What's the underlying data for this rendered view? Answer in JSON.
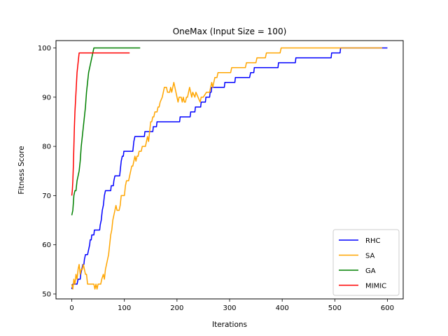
{
  "chart_data": {
    "type": "line",
    "title": "OneMax (Input Size = 100)",
    "xlabel": "Iterations",
    "ylabel": "Fitness Score",
    "xlim": [
      -30,
      630
    ],
    "ylim": [
      49,
      101.5
    ],
    "xticks": [
      0,
      100,
      200,
      300,
      400,
      500,
      600
    ],
    "yticks": [
      50,
      60,
      70,
      80,
      90,
      100
    ],
    "grid": false,
    "legend_position": "lower-right",
    "series": [
      {
        "name": "RHC",
        "color": "#0000ff",
        "points": [
          [
            0,
            51
          ],
          [
            2,
            52
          ],
          [
            10,
            52
          ],
          [
            12,
            53
          ],
          [
            16,
            53
          ],
          [
            17,
            54
          ],
          [
            19,
            55
          ],
          [
            21,
            56
          ],
          [
            23,
            56
          ],
          [
            24,
            57
          ],
          [
            26,
            58
          ],
          [
            30,
            58
          ],
          [
            32,
            59
          ],
          [
            34,
            60
          ],
          [
            35,
            61
          ],
          [
            37,
            61
          ],
          [
            38,
            62
          ],
          [
            42,
            62
          ],
          [
            43,
            63
          ],
          [
            53,
            63
          ],
          [
            54,
            64
          ],
          [
            56,
            65
          ],
          [
            57,
            66
          ],
          [
            58,
            67
          ],
          [
            60,
            68
          ],
          [
            61,
            69
          ],
          [
            62,
            70
          ],
          [
            64,
            71
          ],
          [
            74,
            71
          ],
          [
            75,
            72
          ],
          [
            79,
            72
          ],
          [
            80,
            73
          ],
          [
            82,
            74
          ],
          [
            91,
            74
          ],
          [
            92,
            75
          ],
          [
            93,
            76
          ],
          [
            94,
            77
          ],
          [
            96,
            78
          ],
          [
            98,
            78
          ],
          [
            99,
            79
          ],
          [
            116,
            79
          ],
          [
            117,
            80
          ],
          [
            118,
            81
          ],
          [
            120,
            82
          ],
          [
            138,
            82
          ],
          [
            139,
            83
          ],
          [
            154,
            83
          ],
          [
            155,
            84
          ],
          [
            161,
            84
          ],
          [
            162,
            85
          ],
          [
            205,
            85
          ],
          [
            206,
            86
          ],
          [
            225,
            86
          ],
          [
            226,
            87
          ],
          [
            234,
            87
          ],
          [
            235,
            88
          ],
          [
            245,
            88
          ],
          [
            246,
            89
          ],
          [
            254,
            89
          ],
          [
            255,
            90
          ],
          [
            262,
            90
          ],
          [
            263,
            91
          ],
          [
            265,
            91
          ],
          [
            266,
            92
          ],
          [
            290,
            92
          ],
          [
            291,
            93
          ],
          [
            310,
            93
          ],
          [
            311,
            94
          ],
          [
            338,
            94
          ],
          [
            340,
            95
          ],
          [
            346,
            95
          ],
          [
            347,
            96
          ],
          [
            392,
            96
          ],
          [
            393,
            97
          ],
          [
            425,
            97
          ],
          [
            426,
            98
          ],
          [
            493,
            98
          ],
          [
            494,
            99
          ],
          [
            510,
            99
          ],
          [
            511,
            100
          ],
          [
            600,
            100
          ]
        ]
      },
      {
        "name": "SA",
        "color": "#ffa500",
        "points": [
          [
            0,
            52
          ],
          [
            2,
            51
          ],
          [
            4,
            53
          ],
          [
            6,
            52
          ],
          [
            8,
            54
          ],
          [
            10,
            53
          ],
          [
            12,
            55
          ],
          [
            14,
            56
          ],
          [
            16,
            54
          ],
          [
            18,
            55
          ],
          [
            20,
            55
          ],
          [
            22,
            56
          ],
          [
            24,
            55
          ],
          [
            26,
            54
          ],
          [
            28,
            54
          ],
          [
            30,
            52
          ],
          [
            42,
            52
          ],
          [
            44,
            51
          ],
          [
            46,
            52
          ],
          [
            48,
            51
          ],
          [
            50,
            52
          ],
          [
            55,
            52
          ],
          [
            57,
            53
          ],
          [
            60,
            54
          ],
          [
            62,
            53
          ],
          [
            64,
            55
          ],
          [
            66,
            56
          ],
          [
            68,
            57
          ],
          [
            70,
            58
          ],
          [
            72,
            60
          ],
          [
            74,
            62
          ],
          [
            76,
            63
          ],
          [
            78,
            65
          ],
          [
            80,
            66
          ],
          [
            82,
            67
          ],
          [
            84,
            68
          ],
          [
            86,
            67
          ],
          [
            90,
            67
          ],
          [
            92,
            68
          ],
          [
            94,
            70
          ],
          [
            100,
            70
          ],
          [
            102,
            72
          ],
          [
            104,
            73
          ],
          [
            108,
            73
          ],
          [
            110,
            74
          ],
          [
            112,
            75
          ],
          [
            114,
            76
          ],
          [
            116,
            76
          ],
          [
            118,
            77
          ],
          [
            120,
            78
          ],
          [
            122,
            77
          ],
          [
            124,
            78
          ],
          [
            126,
            78
          ],
          [
            128,
            79
          ],
          [
            132,
            79
          ],
          [
            134,
            80
          ],
          [
            140,
            80
          ],
          [
            142,
            81
          ],
          [
            144,
            82
          ],
          [
            146,
            81
          ],
          [
            148,
            83
          ],
          [
            150,
            85
          ],
          [
            152,
            85
          ],
          [
            154,
            86
          ],
          [
            156,
            86
          ],
          [
            158,
            87
          ],
          [
            162,
            87
          ],
          [
            164,
            88
          ],
          [
            166,
            88
          ],
          [
            168,
            89
          ],
          [
            172,
            90
          ],
          [
            174,
            91
          ],
          [
            176,
            92
          ],
          [
            180,
            92
          ],
          [
            182,
            91
          ],
          [
            186,
            91
          ],
          [
            188,
            92
          ],
          [
            190,
            91
          ],
          [
            192,
            92
          ],
          [
            194,
            93
          ],
          [
            196,
            92
          ],
          [
            198,
            91
          ],
          [
            200,
            90
          ],
          [
            202,
            89
          ],
          [
            204,
            90
          ],
          [
            208,
            90
          ],
          [
            210,
            89
          ],
          [
            212,
            90
          ],
          [
            214,
            89
          ],
          [
            216,
            89
          ],
          [
            218,
            90
          ],
          [
            220,
            90
          ],
          [
            222,
            91
          ],
          [
            224,
            92
          ],
          [
            226,
            91
          ],
          [
            228,
            90
          ],
          [
            230,
            91
          ],
          [
            234,
            90
          ],
          [
            236,
            91
          ],
          [
            240,
            90
          ],
          [
            244,
            89
          ],
          [
            246,
            90
          ],
          [
            250,
            90
          ],
          [
            256,
            91
          ],
          [
            262,
            91
          ],
          [
            264,
            92
          ],
          [
            266,
            93
          ],
          [
            268,
            92
          ],
          [
            270,
            93
          ],
          [
            272,
            94
          ],
          [
            276,
            94
          ],
          [
            278,
            95
          ],
          [
            302,
            95
          ],
          [
            304,
            96
          ],
          [
            330,
            96
          ],
          [
            332,
            97
          ],
          [
            350,
            97
          ],
          [
            352,
            98
          ],
          [
            368,
            98
          ],
          [
            370,
            99
          ],
          [
            396,
            99
          ],
          [
            398,
            100
          ],
          [
            590,
            100
          ]
        ]
      },
      {
        "name": "GA",
        "color": "#008000",
        "points": [
          [
            0,
            66
          ],
          [
            2,
            67
          ],
          [
            4,
            70
          ],
          [
            6,
            71
          ],
          [
            8,
            71
          ],
          [
            10,
            73
          ],
          [
            12,
            74
          ],
          [
            14,
            75
          ],
          [
            16,
            77
          ],
          [
            18,
            80
          ],
          [
            20,
            82
          ],
          [
            22,
            84
          ],
          [
            24,
            86
          ],
          [
            26,
            88
          ],
          [
            28,
            91
          ],
          [
            30,
            93
          ],
          [
            32,
            95
          ],
          [
            34,
            96
          ],
          [
            36,
            97
          ],
          [
            38,
            98
          ],
          [
            40,
            99
          ],
          [
            42,
            100
          ],
          [
            130,
            100
          ]
        ]
      },
      {
        "name": "MIMIC",
        "color": "#ff0000",
        "points": [
          [
            0,
            70
          ],
          [
            1,
            71
          ],
          [
            2,
            73
          ],
          [
            3,
            76
          ],
          [
            4,
            80
          ],
          [
            5,
            84
          ],
          [
            6,
            87
          ],
          [
            7,
            89
          ],
          [
            8,
            91
          ],
          [
            9,
            93
          ],
          [
            10,
            95
          ],
          [
            11,
            96
          ],
          [
            12,
            97
          ],
          [
            13,
            98
          ],
          [
            14,
            99
          ],
          [
            110,
            99
          ]
        ]
      }
    ]
  }
}
